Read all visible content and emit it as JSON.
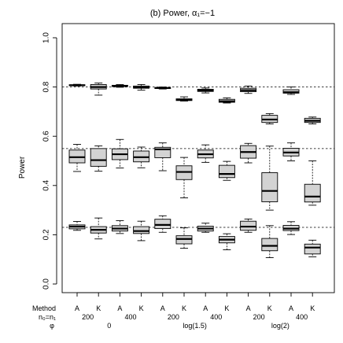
{
  "chart_data": {
    "type": "boxplot",
    "title": "(b) Power, α₁=−1",
    "ylabel": "Power",
    "ylim": [
      0.0,
      1.0
    ],
    "yticks": [
      "0.0",
      "0.2",
      "0.4",
      "0.6",
      "0.8",
      "1.0"
    ],
    "grid": false,
    "reference_lines": [
      0.8,
      0.55,
      0.23
    ],
    "row_labels": {
      "method": "Method",
      "n": "n₀=n₁",
      "phi": "φ"
    },
    "methods": [
      "A",
      "K",
      "A",
      "K",
      "A",
      "K",
      "A",
      "K",
      "A",
      "K",
      "A",
      "K"
    ],
    "n_groups": [
      {
        "label": "200",
        "span": [
          0,
          1
        ]
      },
      {
        "label": "400",
        "span": [
          2,
          3
        ]
      },
      {
        "label": "200",
        "span": [
          4,
          5
        ]
      },
      {
        "label": "400",
        "span": [
          6,
          7
        ]
      },
      {
        "label": "200",
        "span": [
          8,
          9
        ]
      },
      {
        "label": "400",
        "span": [
          10,
          11
        ]
      }
    ],
    "phi_groups": [
      {
        "label": "0",
        "span": [
          0,
          3
        ]
      },
      {
        "label": "log(1.5)",
        "span": [
          4,
          7
        ]
      },
      {
        "label": "log(2)",
        "span": [
          8,
          11
        ]
      }
    ],
    "colors": {
      "box_fill": "#d3d3d3",
      "box_stroke": "#000000",
      "ref_line": "#000000"
    },
    "series": [
      {
        "level": "0.8",
        "boxes": [
          {
            "min": 0.804,
            "q1": 0.806,
            "median": 0.807,
            "q3": 0.809,
            "max": 0.811
          },
          {
            "min": 0.767,
            "q1": 0.792,
            "median": 0.8,
            "q3": 0.81,
            "max": 0.816
          },
          {
            "min": 0.799,
            "q1": 0.802,
            "median": 0.804,
            "q3": 0.807,
            "max": 0.81
          },
          {
            "min": 0.787,
            "q1": 0.795,
            "median": 0.799,
            "q3": 0.804,
            "max": 0.81
          },
          {
            "min": 0.792,
            "q1": 0.794,
            "median": 0.796,
            "q3": 0.798,
            "max": 0.8
          },
          {
            "min": 0.743,
            "q1": 0.745,
            "median": 0.748,
            "q3": 0.752,
            "max": 0.76
          },
          {
            "min": 0.776,
            "q1": 0.782,
            "median": 0.786,
            "q3": 0.791,
            "max": 0.796
          },
          {
            "min": 0.735,
            "q1": 0.738,
            "median": 0.742,
            "q3": 0.75,
            "max": 0.756
          },
          {
            "min": 0.774,
            "q1": 0.781,
            "median": 0.787,
            "q3": 0.795,
            "max": 0.804
          },
          {
            "min": 0.65,
            "q1": 0.656,
            "median": 0.668,
            "q3": 0.685,
            "max": 0.692
          },
          {
            "min": 0.77,
            "q1": 0.775,
            "median": 0.779,
            "q3": 0.789,
            "max": 0.8
          },
          {
            "min": 0.65,
            "q1": 0.656,
            "median": 0.663,
            "q3": 0.673,
            "max": 0.678
          }
        ]
      },
      {
        "level": "0.55",
        "boxes": [
          {
            "min": 0.457,
            "q1": 0.492,
            "median": 0.515,
            "q3": 0.544,
            "max": 0.567
          },
          {
            "min": 0.458,
            "q1": 0.478,
            "median": 0.503,
            "q3": 0.55,
            "max": 0.561
          },
          {
            "min": 0.471,
            "q1": 0.505,
            "median": 0.527,
            "q3": 0.549,
            "max": 0.587
          },
          {
            "min": 0.472,
            "q1": 0.496,
            "median": 0.515,
            "q3": 0.54,
            "max": 0.556
          },
          {
            "min": 0.46,
            "q1": 0.513,
            "median": 0.547,
            "q3": 0.555,
            "max": 0.573
          },
          {
            "min": 0.35,
            "q1": 0.424,
            "median": 0.455,
            "q3": 0.48,
            "max": 0.514
          },
          {
            "min": 0.494,
            "q1": 0.512,
            "median": 0.527,
            "q3": 0.544,
            "max": 0.565
          },
          {
            "min": 0.421,
            "q1": 0.432,
            "median": 0.447,
            "q3": 0.482,
            "max": 0.498
          },
          {
            "min": 0.492,
            "q1": 0.511,
            "median": 0.536,
            "q3": 0.562,
            "max": 0.571
          },
          {
            "min": 0.3,
            "q1": 0.334,
            "median": 0.378,
            "q3": 0.452,
            "max": 0.56
          },
          {
            "min": 0.5,
            "q1": 0.52,
            "median": 0.534,
            "q3": 0.551,
            "max": 0.573
          },
          {
            "min": 0.32,
            "q1": 0.333,
            "median": 0.355,
            "q3": 0.405,
            "max": 0.5
          }
        ]
      },
      {
        "level": "0.23",
        "boxes": [
          {
            "min": 0.218,
            "q1": 0.224,
            "median": 0.233,
            "q3": 0.24,
            "max": 0.254
          },
          {
            "min": 0.183,
            "q1": 0.207,
            "median": 0.22,
            "q3": 0.233,
            "max": 0.268
          },
          {
            "min": 0.205,
            "q1": 0.215,
            "median": 0.225,
            "q3": 0.237,
            "max": 0.257
          },
          {
            "min": 0.176,
            "q1": 0.205,
            "median": 0.215,
            "q3": 0.233,
            "max": 0.255
          },
          {
            "min": 0.21,
            "q1": 0.225,
            "median": 0.24,
            "q3": 0.263,
            "max": 0.277
          },
          {
            "min": 0.145,
            "q1": 0.163,
            "median": 0.183,
            "q3": 0.196,
            "max": 0.228
          },
          {
            "min": 0.21,
            "q1": 0.215,
            "median": 0.225,
            "q3": 0.235,
            "max": 0.247
          },
          {
            "min": 0.139,
            "q1": 0.167,
            "median": 0.18,
            "q3": 0.193,
            "max": 0.204
          },
          {
            "min": 0.21,
            "q1": 0.218,
            "median": 0.233,
            "q3": 0.255,
            "max": 0.264
          },
          {
            "min": 0.107,
            "q1": 0.135,
            "median": 0.155,
            "q3": 0.185,
            "max": 0.237
          },
          {
            "min": 0.201,
            "q1": 0.217,
            "median": 0.225,
            "q3": 0.238,
            "max": 0.253
          },
          {
            "min": 0.11,
            "q1": 0.122,
            "median": 0.148,
            "q3": 0.162,
            "max": 0.178
          }
        ]
      }
    ]
  }
}
